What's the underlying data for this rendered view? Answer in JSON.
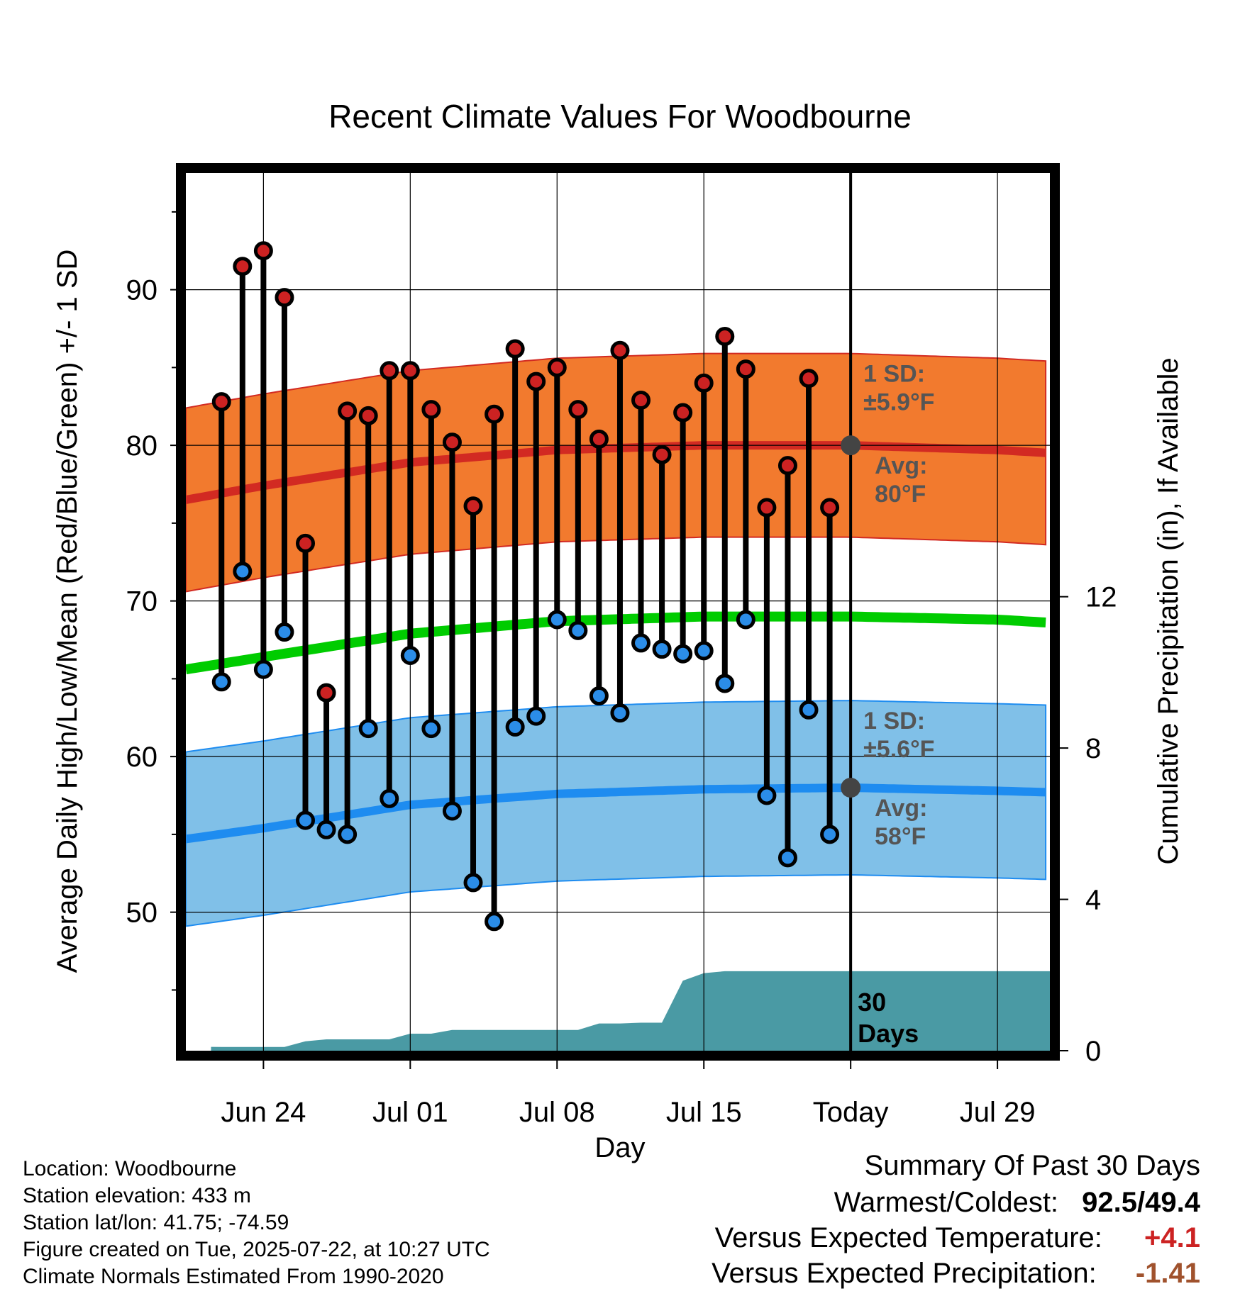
{
  "chart_data": {
    "type": "line",
    "title": "Recent Climate Values For Woodbourne",
    "xlabel": "Day",
    "ylabel": "Average Daily High/Low/Mean (Red/Blue/Green) +/- 1 SD",
    "y2label": "Cumulative Precipitation (in), If Available",
    "x_ticks": [
      "Jun 24",
      "Jul 01",
      "Jul 08",
      "Jul 15",
      "Today",
      "Jul 29"
    ],
    "x_tick_days": [
      -28,
      -21,
      -14,
      -7,
      0,
      7
    ],
    "xlim_days": [
      -31.7,
      9.5
    ],
    "ylim": [
      41.1,
      97.5
    ],
    "y_ticks": [
      50,
      60,
      70,
      80,
      90
    ],
    "y2lim": [
      0,
      23.2
    ],
    "y2_ticks": [
      0,
      4,
      8,
      12
    ],
    "grid": true,
    "days": [
      -30,
      -29,
      -28,
      -27,
      -26,
      -25,
      -24,
      -23,
      -22,
      -21,
      -20,
      -19,
      -18,
      -17,
      -16,
      -15,
      -14,
      -13,
      -12,
      -11,
      -10,
      -9,
      -8,
      -7,
      -6,
      -5,
      -4,
      -3,
      -2,
      -1
    ],
    "series": [
      {
        "name": "High",
        "color": "#cc2222",
        "values": [
          82.8,
          91.5,
          92.5,
          89.5,
          73.7,
          64.1,
          82.2,
          81.9,
          84.8,
          84.8,
          82.3,
          80.2,
          76.1,
          82.0,
          86.2,
          84.1,
          85.0,
          82.3,
          80.4,
          86.1,
          82.9,
          79.4,
          82.1,
          84.0,
          87.0,
          84.9,
          76.0,
          78.7,
          84.3,
          76.0
        ]
      },
      {
        "name": "Low",
        "color": "#2b8de8",
        "values": [
          64.8,
          71.9,
          65.6,
          68.0,
          55.9,
          55.3,
          55.0,
          61.8,
          57.3,
          66.5,
          61.8,
          56.5,
          51.9,
          49.4,
          61.9,
          62.6,
          68.8,
          68.1,
          63.9,
          62.8,
          67.3,
          66.9,
          66.6,
          66.8,
          64.7,
          68.8,
          57.5,
          53.5,
          63.0,
          55.0
        ]
      },
      {
        "name": "Cumulative Precipitation",
        "color": "#4a9aa4",
        "precip": [
          0.1,
          0.1,
          0.1,
          0.1,
          0.25,
          0.3,
          0.3,
          0.3,
          0.3,
          0.45,
          0.45,
          0.55,
          0.55,
          0.55,
          0.55,
          0.55,
          0.55,
          0.55,
          0.72,
          0.72,
          0.74,
          0.74,
          1.85,
          2.05,
          2.1,
          2.1,
          2.1,
          2.1,
          2.1,
          2.1
        ]
      }
    ],
    "normals": {
      "days": [
        -31.7,
        -28,
        -21,
        -14,
        -7,
        0,
        7,
        9.5
      ],
      "high_avg": [
        76.5,
        77.4,
        78.9,
        79.7,
        80.0,
        80.0,
        79.7,
        79.5
      ],
      "low_avg": [
        54.7,
        55.4,
        56.9,
        57.6,
        57.9,
        58.0,
        57.8,
        57.7
      ],
      "mean_avg": [
        65.6,
        66.4,
        67.9,
        68.7,
        69.0,
        69.0,
        68.8,
        68.6
      ],
      "high_sd": 5.9,
      "low_sd": 5.6
    },
    "annotations": {
      "high_sd_label": "1 SD:",
      "high_sd_value": "±5.9°F",
      "high_avg_label": "Avg:",
      "high_avg_value": "80°F",
      "low_sd_label": "1 SD:",
      "low_sd_value": "±5.6°F",
      "low_avg_label": "Avg:",
      "low_avg_value": "58°F",
      "period_label_1": "30",
      "period_label_2": "Days"
    },
    "colors": {
      "high_band": "#f27a2e",
      "high_line": "#d22a22",
      "low_band": "#80c0e8",
      "low_line": "#1e8cf0",
      "mean_line": "#00cc00",
      "precip": "#4a9aa4",
      "avg_dot": "#444444",
      "annotation_text": "#555555"
    }
  },
  "info": {
    "location": "Location: Woodbourne",
    "elevation": "Station elevation: 433 m",
    "latlon": "Station lat/lon: 41.75; -74.59",
    "created": "Figure created on Tue, 2025-07-22, at 10:27 UTC",
    "normals": "Climate Normals Estimated From 1990-2020"
  },
  "summary": {
    "title": "Summary Of Past 30 Days",
    "warm_cold_label": "Warmest/Coldest:",
    "warm_cold_value": "92.5/49.4",
    "temp_label": "Versus Expected Temperature:",
    "temp_value": "+4.1",
    "temp_color": "#cc2222",
    "precip_label": "Versus Expected Precipitation:",
    "precip_value": "-1.41",
    "precip_color": "#a0522d"
  }
}
